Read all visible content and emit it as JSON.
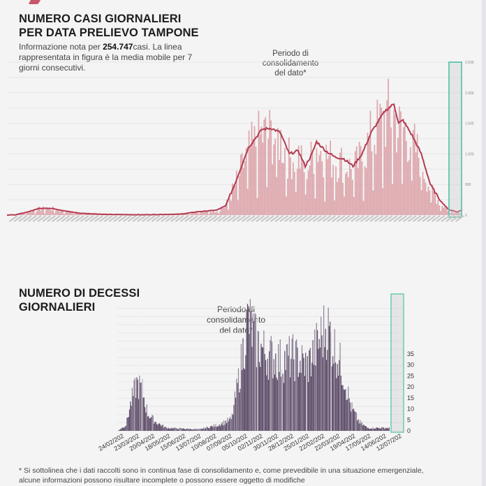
{
  "chart_data": [
    {
      "type": "bar+line",
      "title": "NUMERO CASI GIORNALIERI PER DATA PRELIEVO TAMPONE",
      "subtitle_parts": [
        "Informazione nota per ",
        "254.747",
        "casi. La linea rappresentata in figura è la media mobile per 7 giorni consecutivi."
      ],
      "annotation": "Periodo di consolidamento del dato*",
      "ylabel": "",
      "xlabel": "",
      "ylim": [
        0,
        2500
      ],
      "yticks": [
        0,
        500,
        "1.000",
        "1.500",
        "2.000",
        "2.500"
      ],
      "ytick_values": [
        0,
        500,
        1000,
        1500,
        2000,
        2500
      ],
      "grid": true,
      "y_axis_side": "right",
      "bar_color": "#dca4aa",
      "line_color": "#b33a50",
      "consolidation_box_color": "#6ccab0",
      "line_series_name": "media mobile 7 giorni",
      "moving_average_keypoints": [
        {
          "t": 0.0,
          "v": 0
        },
        {
          "t": 0.02,
          "v": 5
        },
        {
          "t": 0.05,
          "v": 60
        },
        {
          "t": 0.07,
          "v": 110
        },
        {
          "t": 0.1,
          "v": 110
        },
        {
          "t": 0.12,
          "v": 75
        },
        {
          "t": 0.16,
          "v": 30
        },
        {
          "t": 0.22,
          "v": 10
        },
        {
          "t": 0.3,
          "v": 5
        },
        {
          "t": 0.38,
          "v": 15
        },
        {
          "t": 0.42,
          "v": 55
        },
        {
          "t": 0.46,
          "v": 80
        },
        {
          "t": 0.48,
          "v": 150
        },
        {
          "t": 0.5,
          "v": 500
        },
        {
          "t": 0.53,
          "v": 1100
        },
        {
          "t": 0.56,
          "v": 1400
        },
        {
          "t": 0.58,
          "v": 1420
        },
        {
          "t": 0.6,
          "v": 1350
        },
        {
          "t": 0.62,
          "v": 1000
        },
        {
          "t": 0.64,
          "v": 1050
        },
        {
          "t": 0.655,
          "v": 800
        },
        {
          "t": 0.67,
          "v": 1000
        },
        {
          "t": 0.68,
          "v": 1200
        },
        {
          "t": 0.7,
          "v": 1050
        },
        {
          "t": 0.72,
          "v": 950
        },
        {
          "t": 0.74,
          "v": 920
        },
        {
          "t": 0.76,
          "v": 800
        },
        {
          "t": 0.78,
          "v": 1000
        },
        {
          "t": 0.8,
          "v": 1350
        },
        {
          "t": 0.83,
          "v": 1700
        },
        {
          "t": 0.85,
          "v": 1820
        },
        {
          "t": 0.86,
          "v": 1500
        },
        {
          "t": 0.87,
          "v": 1550
        },
        {
          "t": 0.89,
          "v": 1300
        },
        {
          "t": 0.91,
          "v": 1000
        },
        {
          "t": 0.93,
          "v": 500
        },
        {
          "t": 0.95,
          "v": 250
        },
        {
          "t": 0.97,
          "v": 90
        },
        {
          "t": 0.99,
          "v": 50
        },
        {
          "t": 1.0,
          "v": 90
        }
      ],
      "consolidation_period_start_fraction": 0.975
    },
    {
      "type": "bar",
      "title": "NUMERO DI DECESSI GIORNALIERI",
      "annotation": "Periodo di consolidamento del dato*",
      "ylim": [
        0,
        35
      ],
      "yticks": [
        0,
        5,
        10,
        15,
        20,
        25,
        30,
        35
      ],
      "grid": true,
      "y_axis_side": "right",
      "bar_color": "#5a4a66",
      "consolidation_box_color": "#6ccab0",
      "categories": [
        "24/02/202",
        "23/03/202",
        "20/04/202",
        "18/05/202",
        "15/06/202",
        "13/07/202",
        "10/08/202",
        "07/09/202",
        "05/10/202",
        "02/11/202",
        "30/11/202",
        "28/12/202",
        "25/01/202",
        "22/02/202",
        "22/03/202",
        "19/04/202",
        "17/05/202",
        "14/06/202",
        "12/07/202"
      ],
      "envelope_keypoints": [
        {
          "t": 0.0,
          "v": 0
        },
        {
          "t": 0.03,
          "v": 2
        },
        {
          "t": 0.05,
          "v": 10
        },
        {
          "t": 0.07,
          "v": 16
        },
        {
          "t": 0.09,
          "v": 14
        },
        {
          "t": 0.11,
          "v": 6
        },
        {
          "t": 0.14,
          "v": 3
        },
        {
          "t": 0.18,
          "v": 1
        },
        {
          "t": 0.3,
          "v": 0.5
        },
        {
          "t": 0.37,
          "v": 2
        },
        {
          "t": 0.42,
          "v": 4
        },
        {
          "t": 0.45,
          "v": 20
        },
        {
          "t": 0.48,
          "v": 38
        },
        {
          "t": 0.51,
          "v": 30
        },
        {
          "t": 0.55,
          "v": 26
        },
        {
          "t": 0.6,
          "v": 24
        },
        {
          "t": 0.65,
          "v": 25
        },
        {
          "t": 0.7,
          "v": 22
        },
        {
          "t": 0.74,
          "v": 30
        },
        {
          "t": 0.77,
          "v": 36
        },
        {
          "t": 0.8,
          "v": 28
        },
        {
          "t": 0.83,
          "v": 20
        },
        {
          "t": 0.86,
          "v": 8
        },
        {
          "t": 0.89,
          "v": 3
        },
        {
          "t": 0.92,
          "v": 1
        },
        {
          "t": 1.0,
          "v": 1
        }
      ],
      "consolidation_period_start_fraction": 0.955
    }
  ],
  "header": {
    "title_line1": "NUMERO CASI GIORNALIERI",
    "title_line2": "PER DATA PRELIEVO TAMPONE",
    "subtitle_pre": "Informazione nota per ",
    "subtitle_bold": "254.747",
    "subtitle_post": "casi. La linea rappresentata in figura è la media mobile per 7 giorni consecutivi."
  },
  "chart1": {
    "annotation_line1": "Periodo di",
    "annotation_line2": "consolidamento",
    "annotation_line3": "del dato*",
    "ytick_labels": [
      "0",
      "500",
      "1.000",
      "1.500",
      "2.000",
      "2.500"
    ]
  },
  "chart2": {
    "title_line1": "NUMERO DI DECESSI",
    "title_line2": "GIORNALIERI",
    "annotation_line1": "Periodo di",
    "annotation_line2": "consolidamento",
    "annotation_line3": "del dato*",
    "ytick_labels": [
      "0",
      "5",
      "10",
      "15",
      "20",
      "25",
      "30",
      "35"
    ],
    "xtick_labels": [
      "24/02/202",
      "23/03/202",
      "20/04/202",
      "18/05/202",
      "15/06/202",
      "13/07/202",
      "10/08/202",
      "07/09/202",
      "05/10/202",
      "02/11/202",
      "30/11/202",
      "28/12/202",
      "25/01/202",
      "22/02/202",
      "22/03/202",
      "19/04/202",
      "17/05/202",
      "14/06/202",
      "12/07/202"
    ]
  },
  "footnote": {
    "line1": "* Si sottolinea che i dati raccolti sono in continua fase di consolidamento e, come prevedibile in una situazione emergenziale,",
    "line2": "alcune informazioni possono risultare incomplete o possono essere oggetto di modifiche"
  }
}
